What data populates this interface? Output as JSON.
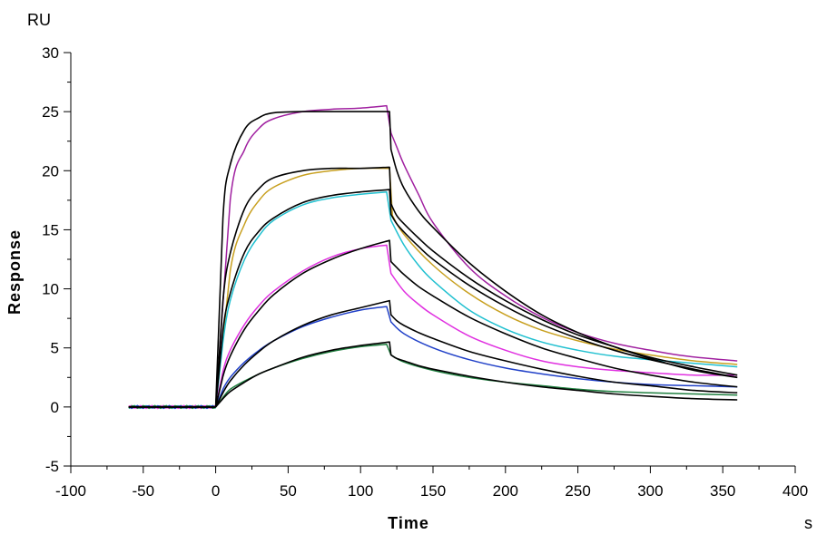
{
  "chart_data": {
    "type": "line",
    "title": "",
    "xlabel": "Time",
    "ylabel": "Response",
    "x_unit": "s",
    "y_unit": "RU",
    "xlim": [
      -100,
      400
    ],
    "ylim": [
      -5,
      30
    ],
    "x_ticks": [
      -100,
      -50,
      0,
      50,
      100,
      150,
      200,
      250,
      300,
      350,
      400
    ],
    "y_ticks": [
      -5,
      0,
      5,
      10,
      15,
      20,
      25,
      30
    ],
    "x_tick_labels": [
      "-100",
      "-50",
      "0",
      "50",
      "100",
      "150",
      "200",
      "250",
      "300",
      "350",
      "400"
    ],
    "y_tick_labels": [
      "-5",
      "0",
      "5",
      "10",
      "15",
      "20",
      "25",
      "30"
    ],
    "grid": false,
    "legend": "none",
    "phases": {
      "baseline_start": -60,
      "injection_start": 0,
      "dissociation_start": 120,
      "end": 360
    },
    "series": [
      {
        "color": "#a020a0",
        "role": "measured",
        "points": [
          [
            0,
            0
          ],
          [
            10,
            17.5
          ],
          [
            20,
            21.8
          ],
          [
            30,
            23.6
          ],
          [
            40,
            24.4
          ],
          [
            60,
            25.0
          ],
          [
            80,
            25.2
          ],
          [
            100,
            25.3
          ],
          [
            118,
            25.5
          ],
          [
            121,
            23.2
          ],
          [
            125,
            22.0
          ],
          [
            130,
            20.5
          ],
          [
            140,
            18.0
          ],
          [
            150,
            15.6
          ],
          [
            175,
            11.8
          ],
          [
            200,
            9.4
          ],
          [
            225,
            7.6
          ],
          [
            250,
            6.3
          ],
          [
            275,
            5.4
          ],
          [
            300,
            4.8
          ],
          [
            325,
            4.3
          ],
          [
            360,
            3.9
          ]
        ]
      },
      {
        "color": "#c8a020",
        "role": "measured",
        "points": [
          [
            0,
            0
          ],
          [
            10,
            11.5
          ],
          [
            20,
            15.5
          ],
          [
            30,
            17.5
          ],
          [
            40,
            18.6
          ],
          [
            60,
            19.6
          ],
          [
            80,
            20.0
          ],
          [
            100,
            20.2
          ],
          [
            120,
            20.2
          ],
          [
            122,
            16.2
          ],
          [
            130,
            14.6
          ],
          [
            150,
            12.0
          ],
          [
            175,
            9.6
          ],
          [
            200,
            7.8
          ],
          [
            225,
            6.5
          ],
          [
            250,
            5.6
          ],
          [
            275,
            4.9
          ],
          [
            300,
            4.4
          ],
          [
            330,
            3.9
          ],
          [
            360,
            3.6
          ]
        ]
      },
      {
        "color": "#20c0d0",
        "role": "measured",
        "points": [
          [
            0,
            0
          ],
          [
            5,
            5.5
          ],
          [
            10,
            9.0
          ],
          [
            20,
            12.5
          ],
          [
            30,
            14.5
          ],
          [
            40,
            15.8
          ],
          [
            60,
            17.1
          ],
          [
            80,
            17.7
          ],
          [
            100,
            18.0
          ],
          [
            118,
            18.2
          ],
          [
            121,
            15.8
          ],
          [
            130,
            13.7
          ],
          [
            140,
            12.0
          ],
          [
            150,
            10.7
          ],
          [
            175,
            8.2
          ],
          [
            200,
            6.6
          ],
          [
            225,
            5.5
          ],
          [
            250,
            4.8
          ],
          [
            275,
            4.3
          ],
          [
            300,
            4.0
          ],
          [
            330,
            3.7
          ],
          [
            360,
            3.4
          ]
        ]
      },
      {
        "color": "#e030e0",
        "role": "measured",
        "points": [
          [
            0,
            0
          ],
          [
            5,
            3.0
          ],
          [
            10,
            4.8
          ],
          [
            20,
            7.0
          ],
          [
            30,
            8.6
          ],
          [
            40,
            9.8
          ],
          [
            60,
            11.5
          ],
          [
            80,
            12.7
          ],
          [
            100,
            13.4
          ],
          [
            118,
            13.7
          ],
          [
            121,
            11.3
          ],
          [
            130,
            9.8
          ],
          [
            140,
            8.7
          ],
          [
            150,
            7.8
          ],
          [
            175,
            6.0
          ],
          [
            200,
            4.8
          ],
          [
            225,
            3.9
          ],
          [
            250,
            3.4
          ],
          [
            275,
            3.1
          ],
          [
            300,
            2.9
          ],
          [
            330,
            2.7
          ],
          [
            360,
            2.7
          ]
        ]
      },
      {
        "color": "#2040c8",
        "role": "measured",
        "points": [
          [
            0,
            0
          ],
          [
            5,
            1.5
          ],
          [
            10,
            2.5
          ],
          [
            20,
            3.8
          ],
          [
            30,
            4.8
          ],
          [
            40,
            5.6
          ],
          [
            60,
            6.8
          ],
          [
            80,
            7.6
          ],
          [
            100,
            8.2
          ],
          [
            118,
            8.5
          ],
          [
            121,
            7.2
          ],
          [
            130,
            6.2
          ],
          [
            150,
            5.0
          ],
          [
            175,
            4.0
          ],
          [
            200,
            3.3
          ],
          [
            225,
            2.8
          ],
          [
            250,
            2.4
          ],
          [
            275,
            2.1
          ],
          [
            300,
            1.9
          ],
          [
            330,
            1.8
          ],
          [
            360,
            1.7
          ]
        ]
      },
      {
        "color": "#208040",
        "role": "measured",
        "points": [
          [
            0,
            0
          ],
          [
            5,
            0.8
          ],
          [
            10,
            1.5
          ],
          [
            20,
            2.2
          ],
          [
            30,
            2.8
          ],
          [
            40,
            3.3
          ],
          [
            60,
            4.1
          ],
          [
            80,
            4.7
          ],
          [
            100,
            5.1
          ],
          [
            118,
            5.3
          ],
          [
            121,
            4.4
          ],
          [
            130,
            3.8
          ],
          [
            150,
            3.1
          ],
          [
            175,
            2.5
          ],
          [
            200,
            2.1
          ],
          [
            225,
            1.8
          ],
          [
            250,
            1.5
          ],
          [
            275,
            1.3
          ],
          [
            300,
            1.2
          ],
          [
            330,
            1.1
          ],
          [
            360,
            1.0
          ]
        ]
      },
      {
        "color": "#000000",
        "role": "fit",
        "points": [
          [
            0,
            0
          ],
          [
            5,
            16.0
          ],
          [
            10,
            20.5
          ],
          [
            20,
            23.5
          ],
          [
            30,
            24.5
          ],
          [
            40,
            24.9
          ],
          [
            60,
            25.0
          ],
          [
            100,
            25.0
          ],
          [
            120,
            25.0
          ],
          [
            121,
            21.8
          ],
          [
            125,
            20.0
          ],
          [
            130,
            18.5
          ],
          [
            140,
            16.6
          ],
          [
            150,
            15.2
          ],
          [
            175,
            12.2
          ],
          [
            200,
            9.8
          ],
          [
            225,
            7.8
          ],
          [
            250,
            6.3
          ],
          [
            275,
            5.1
          ],
          [
            300,
            4.1
          ],
          [
            330,
            3.1
          ],
          [
            360,
            2.5
          ]
        ]
      },
      {
        "color": "#000000",
        "role": "fit",
        "points": [
          [
            0,
            0
          ],
          [
            5,
            9.0
          ],
          [
            10,
            13.0
          ],
          [
            20,
            16.8
          ],
          [
            30,
            18.5
          ],
          [
            40,
            19.4
          ],
          [
            60,
            20.0
          ],
          [
            80,
            20.2
          ],
          [
            100,
            20.2
          ],
          [
            120,
            20.3
          ],
          [
            121,
            17.2
          ],
          [
            125,
            16.2
          ],
          [
            130,
            15.5
          ],
          [
            140,
            14.3
          ],
          [
            150,
            13.2
          ],
          [
            175,
            10.9
          ],
          [
            200,
            9.0
          ],
          [
            225,
            7.4
          ],
          [
            250,
            6.1
          ],
          [
            275,
            5.1
          ],
          [
            300,
            4.2
          ],
          [
            330,
            3.4
          ],
          [
            360,
            2.7
          ]
        ]
      },
      {
        "color": "#000000",
        "role": "fit",
        "points": [
          [
            0,
            0
          ],
          [
            5,
            6.5
          ],
          [
            10,
            9.6
          ],
          [
            20,
            13.1
          ],
          [
            30,
            14.9
          ],
          [
            40,
            16.0
          ],
          [
            60,
            17.3
          ],
          [
            80,
            17.9
          ],
          [
            100,
            18.2
          ],
          [
            120,
            18.4
          ],
          [
            121,
            16.3
          ],
          [
            125,
            15.5
          ],
          [
            130,
            14.8
          ],
          [
            140,
            13.6
          ],
          [
            150,
            12.5
          ],
          [
            175,
            10.3
          ],
          [
            200,
            8.5
          ],
          [
            225,
            7.0
          ],
          [
            250,
            5.8
          ],
          [
            275,
            4.8
          ],
          [
            300,
            4.0
          ],
          [
            330,
            3.2
          ],
          [
            360,
            2.5
          ]
        ]
      },
      {
        "color": "#000000",
        "role": "fit",
        "points": [
          [
            0,
            0
          ],
          [
            5,
            2.6
          ],
          [
            10,
            4.3
          ],
          [
            20,
            6.6
          ],
          [
            30,
            8.2
          ],
          [
            40,
            9.5
          ],
          [
            60,
            11.3
          ],
          [
            80,
            12.5
          ],
          [
            100,
            13.4
          ],
          [
            120,
            14.1
          ],
          [
            121,
            12.3
          ],
          [
            125,
            11.8
          ],
          [
            130,
            11.2
          ],
          [
            140,
            10.2
          ],
          [
            150,
            9.4
          ],
          [
            175,
            7.6
          ],
          [
            200,
            6.2
          ],
          [
            225,
            5.0
          ],
          [
            250,
            4.1
          ],
          [
            275,
            3.3
          ],
          [
            300,
            2.7
          ],
          [
            330,
            2.1
          ],
          [
            360,
            1.7
          ]
        ]
      },
      {
        "color": "#000000",
        "role": "fit",
        "points": [
          [
            0,
            0
          ],
          [
            5,
            1.2
          ],
          [
            10,
            2.2
          ],
          [
            20,
            3.6
          ],
          [
            30,
            4.7
          ],
          [
            40,
            5.6
          ],
          [
            60,
            6.9
          ],
          [
            80,
            7.8
          ],
          [
            100,
            8.4
          ],
          [
            120,
            9.0
          ],
          [
            121,
            7.8
          ],
          [
            125,
            7.3
          ],
          [
            130,
            6.9
          ],
          [
            140,
            6.3
          ],
          [
            150,
            5.8
          ],
          [
            175,
            4.7
          ],
          [
            200,
            3.9
          ],
          [
            225,
            3.2
          ],
          [
            250,
            2.6
          ],
          [
            275,
            2.1
          ],
          [
            300,
            1.8
          ],
          [
            330,
            1.4
          ],
          [
            360,
            1.2
          ]
        ]
      },
      {
        "color": "#000000",
        "role": "fit",
        "points": [
          [
            0,
            0
          ],
          [
            5,
            0.7
          ],
          [
            10,
            1.3
          ],
          [
            20,
            2.1
          ],
          [
            30,
            2.8
          ],
          [
            40,
            3.3
          ],
          [
            60,
            4.2
          ],
          [
            80,
            4.8
          ],
          [
            100,
            5.2
          ],
          [
            120,
            5.5
          ],
          [
            121,
            4.4
          ],
          [
            125,
            4.1
          ],
          [
            130,
            3.9
          ],
          [
            140,
            3.5
          ],
          [
            150,
            3.2
          ],
          [
            175,
            2.6
          ],
          [
            200,
            2.1
          ],
          [
            225,
            1.7
          ],
          [
            250,
            1.4
          ],
          [
            275,
            1.1
          ],
          [
            300,
            0.9
          ],
          [
            330,
            0.7
          ],
          [
            360,
            0.6
          ]
        ]
      }
    ]
  }
}
